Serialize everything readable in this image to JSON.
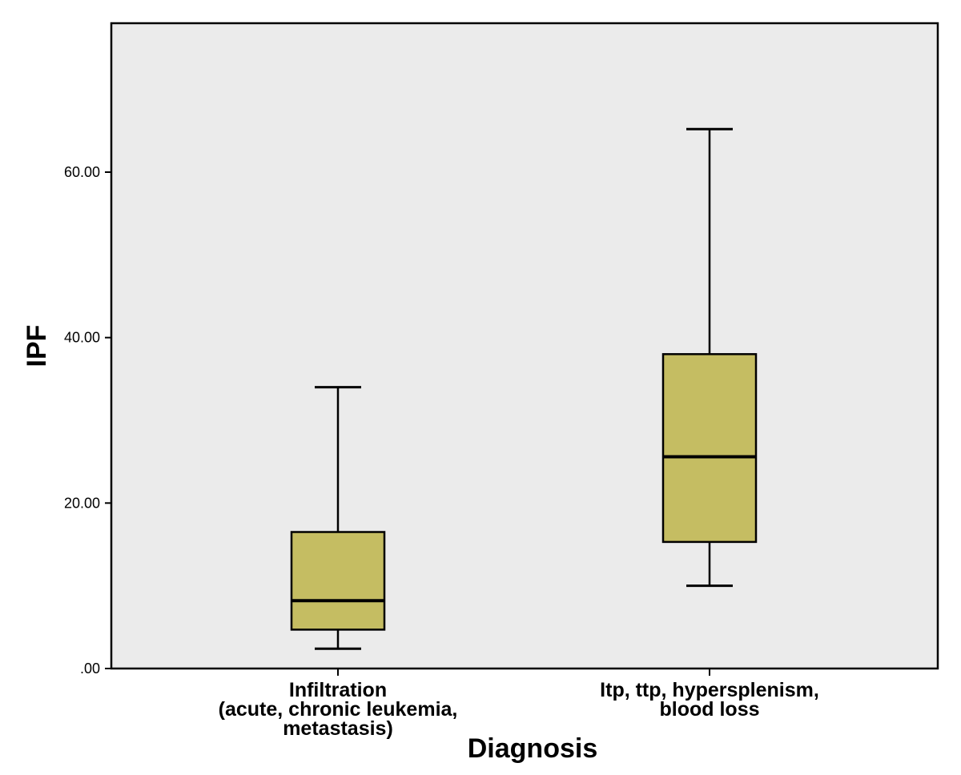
{
  "chart_data": {
    "type": "boxplot",
    "xlabel": "Diagnosis",
    "ylabel": "IPF",
    "ylim": [
      0,
      78
    ],
    "yticks": [
      0,
      20,
      40,
      60
    ],
    "ytick_labels": [
      ".00",
      "20.00",
      "40.00",
      "60.00"
    ],
    "grid": false,
    "categories": [
      {
        "label_lines": [
          "Infiltration",
          "(acute, chronic leukemia,",
          "metastasis)"
        ],
        "whisker_low": 2.4,
        "q1": 4.7,
        "median": 8.2,
        "q3": 16.5,
        "whisker_high": 34.0
      },
      {
        "label_lines": [
          "Itp, ttp, hypersplenism,",
          "blood loss"
        ],
        "whisker_low": 10.0,
        "q1": 15.3,
        "median": 25.6,
        "q3": 38.0,
        "whisker_high": 65.2
      }
    ],
    "colors": {
      "plot_background": "#ebebeb",
      "box_fill": "#c5bd62",
      "stroke": "#000000"
    }
  }
}
